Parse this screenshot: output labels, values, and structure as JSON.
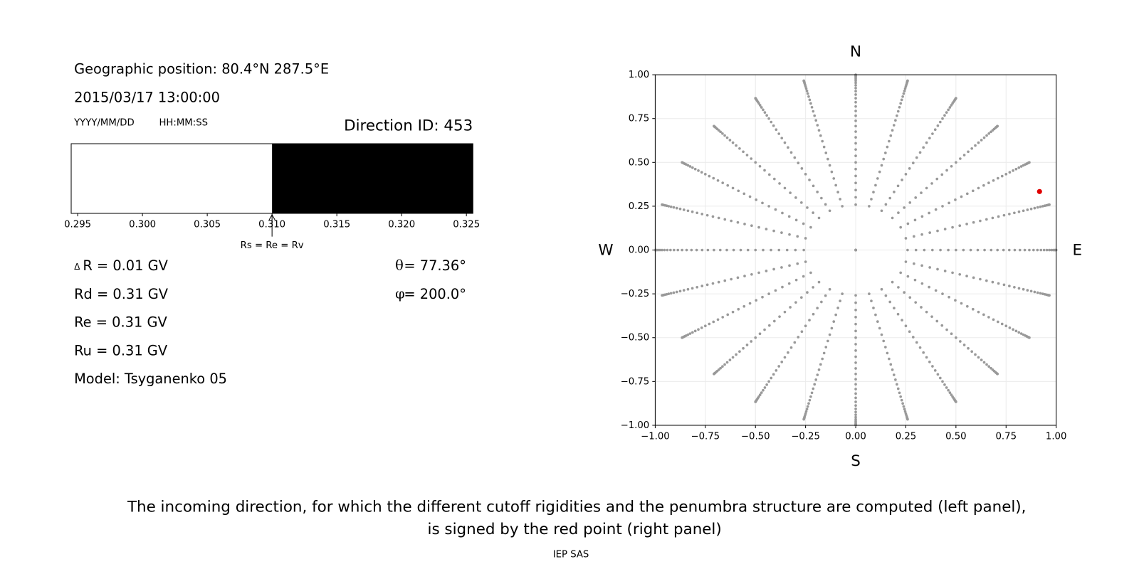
{
  "info": {
    "position": "Geographic position: 80.4°N 287.5°E",
    "datetime": "2015/03/17 13:00:00",
    "date_format": "YYYY/MM/DD",
    "time_format": "HH:MM:SS",
    "direction_id": "Direction ID: 453",
    "delta_r": "R = 0.01 GV",
    "delta_symbol": "Δ",
    "rd": "Rd = 0.31 GV",
    "re": "Re = 0.31 GV",
    "ru": "Ru = 0.31 GV",
    "model": "Model: Tsyganenko 05",
    "caption": [
      "The incoming direction, for which the different cutoff rigidities and the penumbra structure are computed (left panel),",
      "is signed by the red point (right panel)"
    ],
    "footer": "IEP SAS"
  },
  "chart_data": [
    {
      "type": "penumbra",
      "xlim": [
        0.2945,
        0.3255
      ],
      "xticks": [
        {
          "value": 0.295,
          "label": "0.295"
        },
        {
          "value": 0.3,
          "label": "0.300"
        },
        {
          "value": 0.305,
          "label": "0.305"
        },
        {
          "value": 0.31,
          "label": "0.310"
        },
        {
          "value": 0.315,
          "label": "0.315"
        },
        {
          "value": 0.32,
          "label": "0.320"
        },
        {
          "value": 0.325,
          "label": "0.325"
        }
      ],
      "segments": [
        {
          "start": 0.2945,
          "end": 0.31,
          "color": "#ffffff"
        },
        {
          "start": 0.31,
          "end": 0.3255,
          "color": "#000000"
        }
      ],
      "annotation": {
        "x": 0.31,
        "text": "Rs = Re = Rv"
      }
    },
    {
      "type": "sky",
      "xlim": [
        -1,
        1
      ],
      "ylim": [
        -1,
        1
      ],
      "xticks": [
        {
          "value": -1,
          "label": "−1.00"
        },
        {
          "value": -0.75,
          "label": "−0.75"
        },
        {
          "value": -0.5,
          "label": "−0.50"
        },
        {
          "value": -0.25,
          "label": "−0.25"
        },
        {
          "value": 0,
          "label": "0.00"
        },
        {
          "value": 0.25,
          "label": "0.25"
        },
        {
          "value": 0.5,
          "label": "0.50"
        },
        {
          "value": 0.75,
          "label": "0.75"
        },
        {
          "value": 1,
          "label": "1.00"
        }
      ],
      "yticks": [
        {
          "value": -1,
          "label": "−1.00"
        },
        {
          "value": -0.75,
          "label": "−0.75"
        },
        {
          "value": -0.5,
          "label": "−0.50"
        },
        {
          "value": -0.25,
          "label": "−0.25"
        },
        {
          "value": 0,
          "label": "0.00"
        },
        {
          "value": 0.25,
          "label": "0.25"
        },
        {
          "value": 0.5,
          "label": "0.50"
        },
        {
          "value": 0.75,
          "label": "0.75"
        },
        {
          "value": 1,
          "label": "1.00"
        }
      ],
      "grid": true,
      "directions": {
        "N": "N",
        "S": "S",
        "E": "E",
        "W": "W"
      },
      "grid_color": "#999999",
      "grid_theta": [
        0,
        15,
        17.5,
        20,
        22.5,
        25,
        27.5,
        30,
        32.5,
        35,
        37.5,
        40,
        42.5,
        45,
        47.5,
        50,
        52.5,
        55,
        57.5,
        60,
        62.5,
        65,
        67.5,
        70,
        72.5,
        75,
        77.5,
        80,
        82.5,
        85,
        87.5,
        90
      ],
      "grid_phi": [
        0,
        15,
        30,
        45,
        60,
        75,
        90,
        105,
        120,
        135,
        150,
        165,
        180,
        195,
        210,
        225,
        240,
        255,
        270,
        285,
        300,
        315,
        330,
        345
      ],
      "selected": {
        "theta": 77.36,
        "phi": 200,
        "theta_name": "θ",
        "phi_name": "φ",
        "theta_label": " = 77.36°",
        "phi_label": " = 200.0°",
        "color": "#e00000"
      }
    }
  ]
}
